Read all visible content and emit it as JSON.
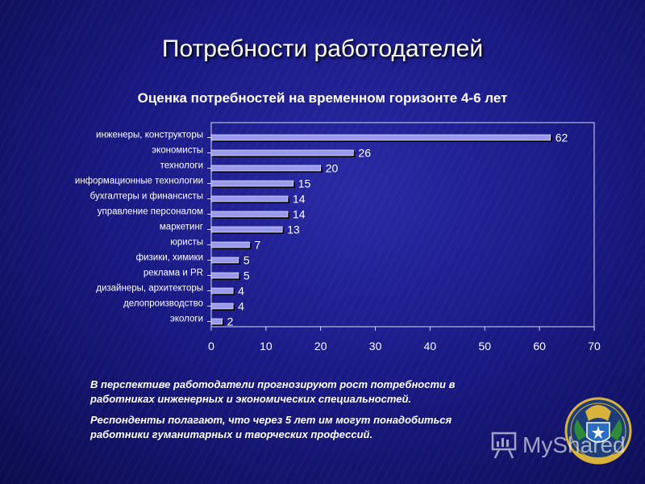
{
  "slide_title": "Потребности работодателей",
  "chart_data": {
    "type": "bar",
    "orientation": "horizontal",
    "title": "Оценка потребностей на временном горизонте 4-6 лет",
    "categories": [
      "инженеры, конструкторы",
      "экономисты",
      "технологи",
      "информационные технологии",
      "бухгалтеры и финансисты",
      "управление персоналом",
      "маркетинг",
      "юристы",
      "физики, химики",
      "реклама и PR",
      "дизайнеры, архитекторы",
      "делопроизводство",
      "экологи"
    ],
    "values": [
      62,
      26,
      20,
      15,
      14,
      14,
      13,
      7,
      5,
      5,
      4,
      4,
      2
    ],
    "xlim": [
      0,
      70
    ],
    "xticks": [
      0,
      10,
      20,
      30,
      40,
      50,
      60,
      70
    ],
    "grid": false,
    "bar_color": "#9999ee",
    "data_labels": true
  },
  "notes": [
    "В перспективе работодатели прогнозируют рост потребности в работниках инженерных и экономических специальностей.",
    "Респонденты полагают, что через 5 лет им могут понадобиться работники гуманитарных и творческих профессий."
  ],
  "watermark_text": "MyShared",
  "icons": {
    "emblem": "coat-of-arms-emblem",
    "watermark": "presentation-board-icon"
  }
}
